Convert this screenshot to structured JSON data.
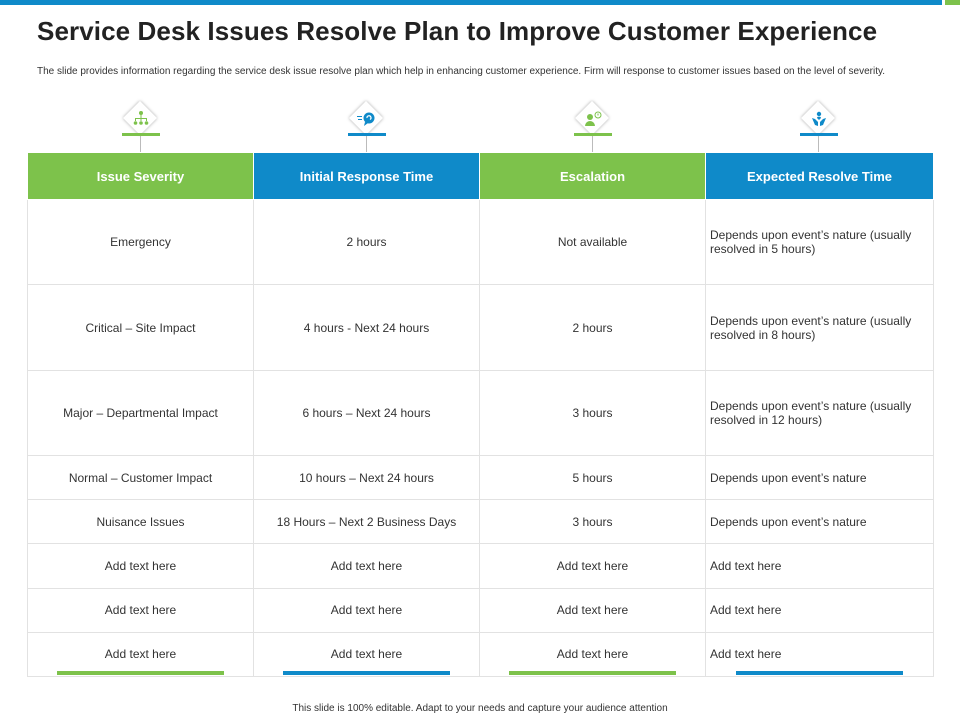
{
  "title": "Service Desk Issues Resolve Plan to Improve Customer Experience",
  "subtitle": "The slide provides information regarding the service desk issue resolve plan which help in enhancing customer experience. Firm will response to customer issues based on the level of severity.",
  "colors": {
    "green": "#7dc24b",
    "blue": "#0f8ac9"
  },
  "icons": [
    "hierarchy-icon",
    "chat-bubble-icon",
    "support-agent-icon",
    "hands-care-icon"
  ],
  "table": {
    "headers": [
      "Issue  Severity",
      "Initial Response Time",
      "Escalation",
      "Expected Resolve Time"
    ],
    "rows": [
      [
        "Emergency",
        "2 hours",
        "Not available",
        "Depends upon event’s nature (usually resolved in 5 hours)"
      ],
      [
        "Critical – Site Impact",
        "4 hours  - Next 24 hours",
        "2 hours",
        "Depends upon event’s nature (usually resolved in 8 hours)"
      ],
      [
        "Major – Departmental Impact",
        "6 hours – Next 24 hours",
        "3 hours",
        "Depends upon event’s nature (usually resolved in 12 hours)"
      ],
      [
        "Normal – Customer Impact",
        "10 hours – Next 24 hours",
        "5 hours",
        "Depends upon event’s nature"
      ],
      [
        "Nuisance Issues",
        "18 Hours – Next 2 Business Days",
        "3 hours",
        "Depends upon event’s nature"
      ],
      [
        "Add text here",
        "Add text here",
        "Add text here",
        "Add text here"
      ],
      [
        "Add text here",
        "Add text here",
        "Add text here",
        "Add text here"
      ],
      [
        "Add text here",
        "Add text here",
        "Add text here",
        "Add text here"
      ]
    ]
  },
  "footer": "This slide is 100% editable.  Adapt to your needs and capture your audience attention"
}
